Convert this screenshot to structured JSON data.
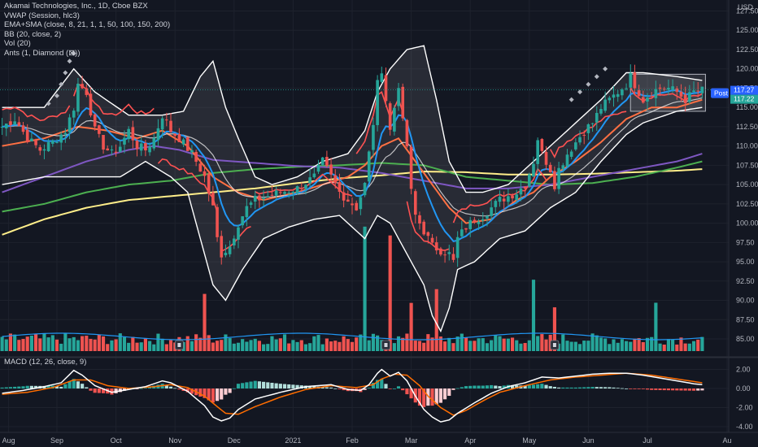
{
  "legend": {
    "symbol": "Akamai Technologies, Inc., 1D, Cboe BZX",
    "vwap": "VWAP (Session, hlc3)",
    "ema_sma": "EMA+SMA (close, 8, 21, 1, 1, 50, 100, 150, 200)",
    "bb": "BB (20, close, 2)",
    "vol": "Vol (20)",
    "ants": "Ants (1, Diamond (⊠))"
  },
  "macd_label": "MACD (12, 26, close, 9)",
  "currency": "USD",
  "price_badges": {
    "post_label": "Post",
    "post_value": "117.27",
    "last_value": "117.22"
  },
  "colors": {
    "bg": "#131722",
    "grid": "#1e222d",
    "up": "#26a69a",
    "down": "#ef5350",
    "ema_fast": "#2196f3",
    "ema_slow": "#ff5252",
    "sma50": "#e040fb",
    "sma100": "#4caf50",
    "sma150": "#7e57c2",
    "sma200": "#ffee8a",
    "bb": "#ffffff",
    "macd": "#ffffff",
    "signal": "#ff6d00"
  },
  "chart_data": {
    "type": "candlestick",
    "x_ticks": [
      "Aug",
      "Sep",
      "Oct",
      "Nov",
      "Dec",
      "2021",
      "Feb",
      "Mar",
      "Apr",
      "May",
      "Jun",
      "Jul",
      "Au"
    ],
    "price_ticks": [
      "127.50",
      "125.00",
      "122.50",
      "120.00",
      "117.50",
      "115.00",
      "112.50",
      "110.00",
      "107.50",
      "105.00",
      "102.50",
      "100.00",
      "97.50",
      "95.00",
      "92.50",
      "90.00",
      "87.50",
      "85.00"
    ],
    "macd_ticks": [
      "2.00",
      "0.00",
      "-2.00",
      "-4.00"
    ],
    "price_range": [
      83.0,
      128.5
    ],
    "macd_range": [
      -4.6,
      2.9
    ],
    "close_path": [
      [
        0,
        112.5
      ],
      [
        3,
        113.5
      ],
      [
        6,
        111
      ],
      [
        9,
        109.5
      ],
      [
        12,
        110.5
      ],
      [
        15,
        112
      ],
      [
        17,
        115
      ],
      [
        18,
        118
      ],
      [
        20,
        117
      ],
      [
        22,
        112
      ],
      [
        24,
        110
      ],
      [
        26,
        109
      ],
      [
        28,
        110
      ],
      [
        30,
        112
      ],
      [
        32,
        110
      ],
      [
        34,
        109.5
      ],
      [
        36,
        111
      ],
      [
        38,
        114
      ],
      [
        40,
        112
      ],
      [
        42,
        111
      ],
      [
        45,
        109
      ],
      [
        48,
        106
      ],
      [
        50,
        102
      ],
      [
        51,
        98
      ],
      [
        52,
        96
      ],
      [
        54,
        97
      ],
      [
        56,
        100
      ],
      [
        58,
        102
      ],
      [
        60,
        103
      ],
      [
        63,
        103.5
      ],
      [
        66,
        104
      ],
      [
        70,
        104.5
      ],
      [
        74,
        106
      ],
      [
        76,
        108
      ],
      [
        78,
        106
      ],
      [
        80,
        104
      ],
      [
        82,
        103
      ],
      [
        84,
        102
      ],
      [
        86,
        105
      ],
      [
        87,
        109
      ],
      [
        88,
        113
      ],
      [
        89,
        118
      ],
      [
        90,
        120
      ],
      [
        91,
        116
      ],
      [
        92,
        112
      ],
      [
        93,
        115
      ],
      [
        94,
        118
      ],
      [
        95,
        113
      ],
      [
        96,
        110
      ],
      [
        97,
        104
      ],
      [
        98,
        101
      ],
      [
        100,
        99
      ],
      [
        102,
        97
      ],
      [
        104,
        96.5
      ],
      [
        106,
        96
      ],
      [
        107,
        95
      ],
      [
        108,
        98
      ],
      [
        110,
        99.5
      ],
      [
        112,
        100.5
      ],
      [
        114,
        101
      ],
      [
        116,
        102
      ],
      [
        118,
        103
      ],
      [
        120,
        103.5
      ],
      [
        122,
        104
      ],
      [
        124,
        105
      ],
      [
        126,
        108
      ],
      [
        127,
        111
      ],
      [
        128,
        109
      ],
      [
        130,
        107
      ],
      [
        131,
        105
      ],
      [
        132,
        107
      ],
      [
        134,
        109
      ],
      [
        136,
        110.5
      ],
      [
        138,
        112
      ],
      [
        140,
        113
      ],
      [
        142,
        115
      ],
      [
        144,
        116
      ],
      [
        146,
        117
      ],
      [
        148,
        118
      ],
      [
        149,
        119
      ],
      [
        150,
        118
      ],
      [
        152,
        116
      ],
      [
        154,
        117
      ],
      [
        156,
        117.5
      ],
      [
        158,
        117.5
      ],
      [
        160,
        117
      ],
      [
        162,
        116
      ],
      [
        164,
        117
      ],
      [
        166,
        117.2
      ]
    ],
    "vwap_levels": [
      [
        0,
        17,
        116.5
      ],
      [
        17,
        37,
        118
      ],
      [
        37,
        52,
        104
      ],
      [
        52,
        60,
        97
      ],
      [
        60,
        84,
        104.5
      ],
      [
        84,
        96,
        115
      ],
      [
        96,
        107,
        97
      ],
      [
        107,
        130,
        104
      ],
      [
        130,
        149,
        112
      ],
      [
        149,
        167,
        116
      ]
    ],
    "bb_upper": [
      [
        0,
        115
      ],
      [
        10,
        115
      ],
      [
        17,
        120
      ],
      [
        22,
        117
      ],
      [
        30,
        114
      ],
      [
        38,
        114
      ],
      [
        43,
        114.5
      ],
      [
        47,
        119
      ],
      [
        50,
        121
      ],
      [
        53,
        115
      ],
      [
        56,
        111
      ],
      [
        60,
        106
      ],
      [
        64,
        105
      ],
      [
        70,
        106
      ],
      [
        76,
        108
      ],
      [
        82,
        109
      ],
      [
        86,
        112
      ],
      [
        89,
        117
      ],
      [
        92,
        120
      ],
      [
        96,
        122.5
      ],
      [
        100,
        123
      ],
      [
        103,
        116
      ],
      [
        106,
        108
      ],
      [
        110,
        104
      ],
      [
        114,
        104
      ],
      [
        120,
        105
      ],
      [
        126,
        108
      ],
      [
        130,
        110
      ],
      [
        136,
        113
      ],
      [
        142,
        116
      ],
      [
        148,
        119.5
      ],
      [
        152,
        119.5
      ],
      [
        160,
        119
      ],
      [
        166,
        118.5
      ]
    ],
    "bb_lower": [
      [
        0,
        105
      ],
      [
        10,
        106
      ],
      [
        17,
        106
      ],
      [
        22,
        106
      ],
      [
        28,
        106
      ],
      [
        34,
        108
      ],
      [
        40,
        106
      ],
      [
        44,
        104
      ],
      [
        47,
        98
      ],
      [
        50,
        92
      ],
      [
        53,
        90
      ],
      [
        57,
        94
      ],
      [
        62,
        98
      ],
      [
        68,
        99.5
      ],
      [
        74,
        100.5
      ],
      [
        80,
        101
      ],
      [
        84,
        99
      ],
      [
        86,
        98
      ],
      [
        89,
        101
      ],
      [
        92,
        100
      ],
      [
        96,
        96
      ],
      [
        100,
        92
      ],
      [
        102,
        88
      ],
      [
        104,
        86
      ],
      [
        106,
        89
      ],
      [
        108,
        94
      ],
      [
        112,
        95
      ],
      [
        118,
        98
      ],
      [
        124,
        99
      ],
      [
        130,
        102
      ],
      [
        136,
        104
      ],
      [
        142,
        108
      ],
      [
        148,
        111.5
      ],
      [
        152,
        113
      ],
      [
        160,
        114.5
      ],
      [
        166,
        115
      ]
    ],
    "sma150": [
      [
        0,
        104
      ],
      [
        10,
        106
      ],
      [
        20,
        108
      ],
      [
        30,
        109.5
      ],
      [
        36,
        110
      ],
      [
        42,
        109.5
      ],
      [
        50,
        108.2
      ],
      [
        60,
        107.8
      ],
      [
        70,
        107.4
      ],
      [
        80,
        107.2
      ],
      [
        90,
        106.5
      ],
      [
        100,
        105.5
      ],
      [
        110,
        104.5
      ],
      [
        120,
        104.5
      ],
      [
        130,
        105
      ],
      [
        140,
        106
      ],
      [
        150,
        107
      ],
      [
        160,
        108
      ],
      [
        166,
        109
      ]
    ],
    "sma100": [
      [
        0,
        101.5
      ],
      [
        10,
        102.5
      ],
      [
        20,
        104
      ],
      [
        30,
        105
      ],
      [
        40,
        105.5
      ],
      [
        50,
        106.5
      ],
      [
        60,
        107
      ],
      [
        70,
        107.3
      ],
      [
        80,
        107.5
      ],
      [
        90,
        107.8
      ],
      [
        100,
        107.5
      ],
      [
        110,
        106
      ],
      [
        120,
        105.5
      ],
      [
        130,
        105
      ],
      [
        140,
        105.2
      ],
      [
        150,
        106
      ],
      [
        160,
        107.2
      ],
      [
        166,
        108
      ]
    ],
    "sma200": [
      [
        0,
        98.5
      ],
      [
        10,
        100.5
      ],
      [
        20,
        102
      ],
      [
        30,
        103
      ],
      [
        40,
        103.5
      ],
      [
        50,
        104
      ],
      [
        60,
        104.5
      ],
      [
        70,
        105.2
      ],
      [
        80,
        105.8
      ],
      [
        90,
        106.2
      ],
      [
        100,
        106.7
      ],
      [
        110,
        106.6
      ],
      [
        120,
        106.3
      ],
      [
        130,
        106.3
      ],
      [
        140,
        106.4
      ],
      [
        150,
        106.6
      ],
      [
        160,
        106.8
      ],
      [
        166,
        107
      ]
    ],
    "sma50": [
      [
        0,
        110
      ],
      [
        10,
        111
      ],
      [
        18,
        112.5
      ],
      [
        25,
        112
      ],
      [
        32,
        111
      ],
      [
        38,
        112
      ],
      [
        44,
        110
      ],
      [
        50,
        106
      ],
      [
        56,
        104
      ],
      [
        62,
        103
      ],
      [
        70,
        104
      ],
      [
        76,
        105
      ],
      [
        82,
        106
      ],
      [
        86,
        107.5
      ],
      [
        90,
        110
      ],
      [
        94,
        111
      ],
      [
        98,
        108
      ],
      [
        102,
        105
      ],
      [
        106,
        102
      ],
      [
        110,
        100
      ],
      [
        116,
        100.5
      ],
      [
        122,
        103
      ],
      [
        126,
        104
      ],
      [
        130,
        106
      ],
      [
        136,
        108
      ],
      [
        142,
        110.5
      ],
      [
        148,
        113.5
      ],
      [
        154,
        115
      ],
      [
        160,
        115
      ],
      [
        166,
        116
      ]
    ],
    "macd_line": [
      [
        0,
        -0.5
      ],
      [
        5,
        -0.2
      ],
      [
        10,
        0.2
      ],
      [
        14,
        0.6
      ],
      [
        17,
        1.9
      ],
      [
        19,
        1.4
      ],
      [
        22,
        0.3
      ],
      [
        26,
        -0.4
      ],
      [
        30,
        -0.1
      ],
      [
        34,
        0.2
      ],
      [
        38,
        0.8
      ],
      [
        40,
        0.6
      ],
      [
        44,
        -0.3
      ],
      [
        48,
        -1.8
      ],
      [
        50,
        -3.0
      ],
      [
        52,
        -3.4
      ],
      [
        54,
        -3.1
      ],
      [
        56,
        -2.2
      ],
      [
        60,
        -1.1
      ],
      [
        66,
        -0.4
      ],
      [
        72,
        0.2
      ],
      [
        78,
        0.4
      ],
      [
        82,
        -0.1
      ],
      [
        85,
        -0.2
      ],
      [
        87,
        0.4
      ],
      [
        89,
        1.6
      ],
      [
        90,
        2.0
      ],
      [
        92,
        1.3
      ],
      [
        94,
        1.7
      ],
      [
        96,
        0.8
      ],
      [
        98,
        -0.8
      ],
      [
        100,
        -2.2
      ],
      [
        102,
        -3.0
      ],
      [
        104,
        -3.5
      ],
      [
        106,
        -3.3
      ],
      [
        108,
        -2.6
      ],
      [
        112,
        -1.5
      ],
      [
        116,
        -0.5
      ],
      [
        120,
        0.2
      ],
      [
        124,
        0.6
      ],
      [
        128,
        1.2
      ],
      [
        132,
        1.1
      ],
      [
        136,
        1.3
      ],
      [
        140,
        1.5
      ],
      [
        144,
        1.6
      ],
      [
        148,
        1.6
      ],
      [
        152,
        1.4
      ],
      [
        156,
        1.1
      ],
      [
        160,
        0.8
      ],
      [
        164,
        0.5
      ],
      [
        166,
        0.4
      ]
    ],
    "signal_line": [
      [
        0,
        -0.6
      ],
      [
        6,
        -0.4
      ],
      [
        12,
        0.1
      ],
      [
        17,
        0.9
      ],
      [
        21,
        0.9
      ],
      [
        25,
        0.3
      ],
      [
        30,
        0.0
      ],
      [
        36,
        0.2
      ],
      [
        40,
        0.4
      ],
      [
        44,
        0.1
      ],
      [
        48,
        -0.8
      ],
      [
        51,
        -1.9
      ],
      [
        53,
        -2.6
      ],
      [
        56,
        -2.7
      ],
      [
        60,
        -1.9
      ],
      [
        66,
        -0.9
      ],
      [
        72,
        -0.1
      ],
      [
        78,
        0.3
      ],
      [
        84,
        0.1
      ],
      [
        88,
        0.4
      ],
      [
        90,
        1.0
      ],
      [
        93,
        1.5
      ],
      [
        96,
        1.4
      ],
      [
        99,
        0.3
      ],
      [
        101,
        -0.8
      ],
      [
        104,
        -2.0
      ],
      [
        107,
        -2.8
      ],
      [
        110,
        -2.3
      ],
      [
        114,
        -1.3
      ],
      [
        118,
        -0.4
      ],
      [
        124,
        0.3
      ],
      [
        130,
        0.9
      ],
      [
        136,
        1.2
      ],
      [
        142,
        1.4
      ],
      [
        148,
        1.6
      ],
      [
        154,
        1.4
      ],
      [
        160,
        1.0
      ],
      [
        166,
        0.6
      ]
    ],
    "volume_spikes": [
      [
        48,
        5.2
      ],
      [
        86,
        7.2
      ],
      [
        92,
        13.0
      ],
      [
        97,
        5.0
      ],
      [
        103,
        4.0
      ],
      [
        126,
        4.2
      ],
      [
        131,
        3.8
      ],
      [
        155,
        4.0
      ]
    ],
    "event_markers": [
      42,
      91,
      131
    ],
    "ants_markers": [
      [
        11,
        115.5
      ],
      [
        13,
        116.5
      ],
      [
        14,
        118
      ],
      [
        15,
        119.5
      ],
      [
        16,
        121
      ],
      [
        17,
        122
      ],
      [
        135,
        116
      ],
      [
        137,
        117
      ],
      [
        139,
        118
      ],
      [
        141,
        119
      ],
      [
        143,
        120
      ]
    ]
  }
}
